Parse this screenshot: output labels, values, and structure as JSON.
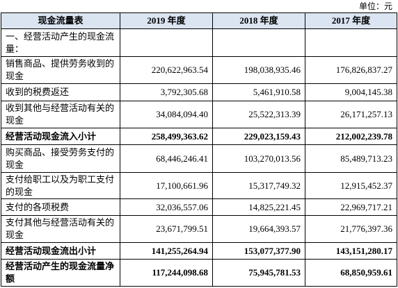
{
  "unit": "单位：元",
  "table": {
    "header": [
      "现金流量表",
      "2019 年度",
      "2018 年度",
      "2017 年度"
    ],
    "rows": [
      [
        "一、经营活动产生的现金流量："
      ],
      [
        "销售商品、提供劳务收到的现金",
        "220,622,963.54",
        "198,038,935.46",
        "176,826,837.27"
      ],
      [
        "收到的税费返还",
        "3,792,305.68",
        "5,461,910.58",
        "9,004,145.38"
      ],
      [
        "收到其他与经营活动有关的现金",
        "34,084,094.40",
        "25,522,313.39",
        "26,171,257.13"
      ],
      [
        "经营活动现金流入小计",
        "258,499,363.62",
        "229,023,159.43",
        "212,002,239.78"
      ],
      [
        "购买商品、接受劳务支付的现金",
        "68,446,246.41",
        "103,270,013.56",
        "85,489,713.23"
      ],
      [
        "支付给职工以及为职工支付的现金",
        "17,100,661.96",
        "15,317,749.32",
        "12,915,452.37"
      ],
      [
        "支付的各项税费",
        "32,036,557.06",
        "14,825,221.45",
        "22,969,717.21"
      ],
      [
        "支付其他与经营活动有关的现金",
        "23,671,799.51",
        "19,664,393.57",
        "21,776,397.36"
      ],
      [
        "经营活动现金流出小计",
        "141,255,264.94",
        "153,077,377.90",
        "143,151,280.17"
      ],
      [
        "经营活动产生的现金流量净额",
        "117,244,098.68",
        "75,945,781.53",
        "68,850,959.61"
      ]
    ]
  }
}
